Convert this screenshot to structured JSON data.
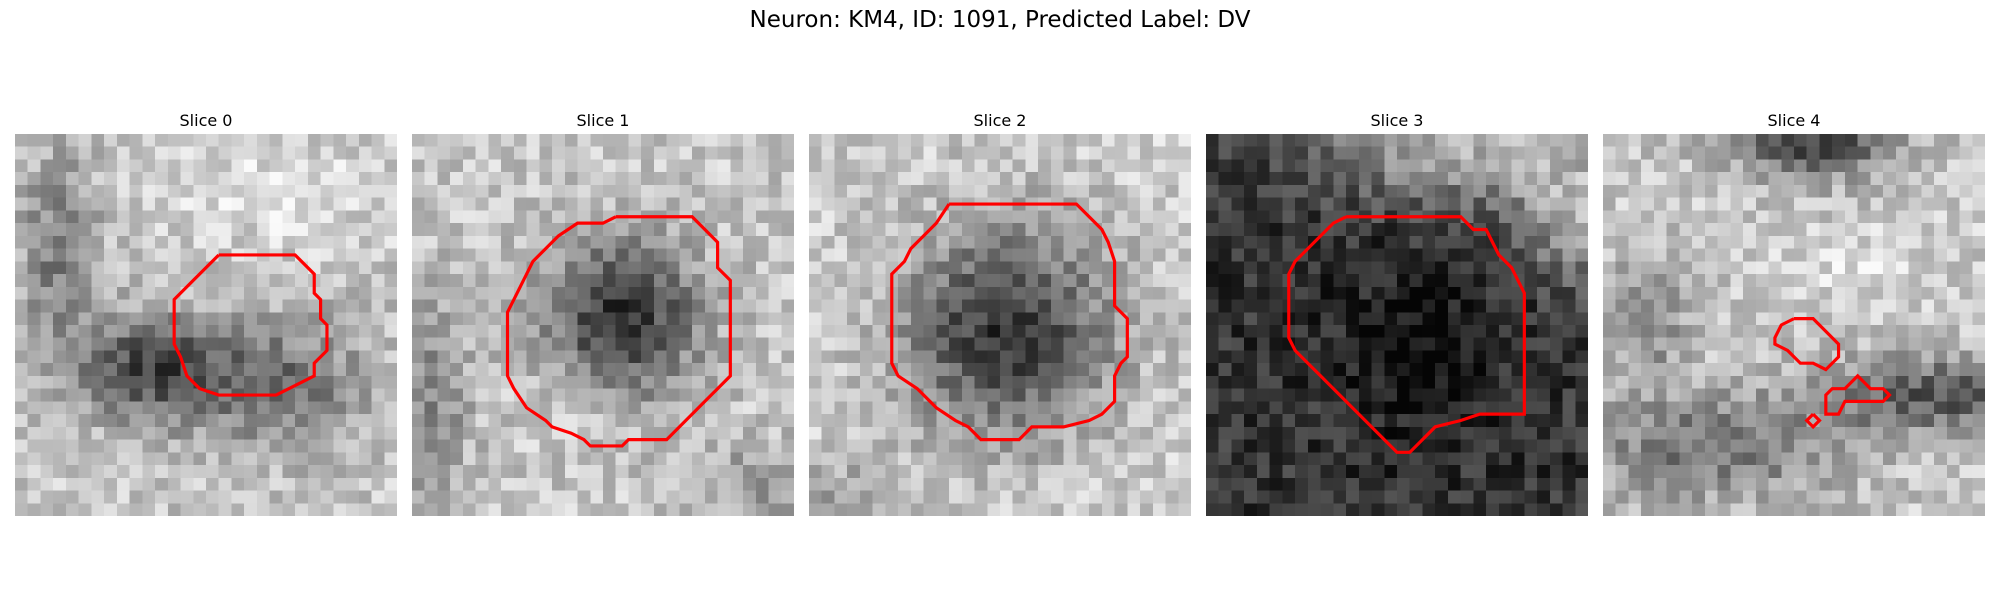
{
  "figure": {
    "title": "Neuron: KM4, ID: 1091, Predicted Label: DV",
    "contour_color": "#ff0000"
  },
  "slices": [
    {
      "title": "Slice 0",
      "seed": 11,
      "pattern": "dark_band"
    },
    {
      "title": "Slice 1",
      "seed": 23,
      "pattern": "dark_blob"
    },
    {
      "title": "Slice 2",
      "seed": 37,
      "pattern": "dark_center"
    },
    {
      "title": "Slice 3",
      "seed": 51,
      "pattern": "dark_lower"
    },
    {
      "title": "Slice 4",
      "seed": 67,
      "pattern": "dark_top_band"
    }
  ]
}
